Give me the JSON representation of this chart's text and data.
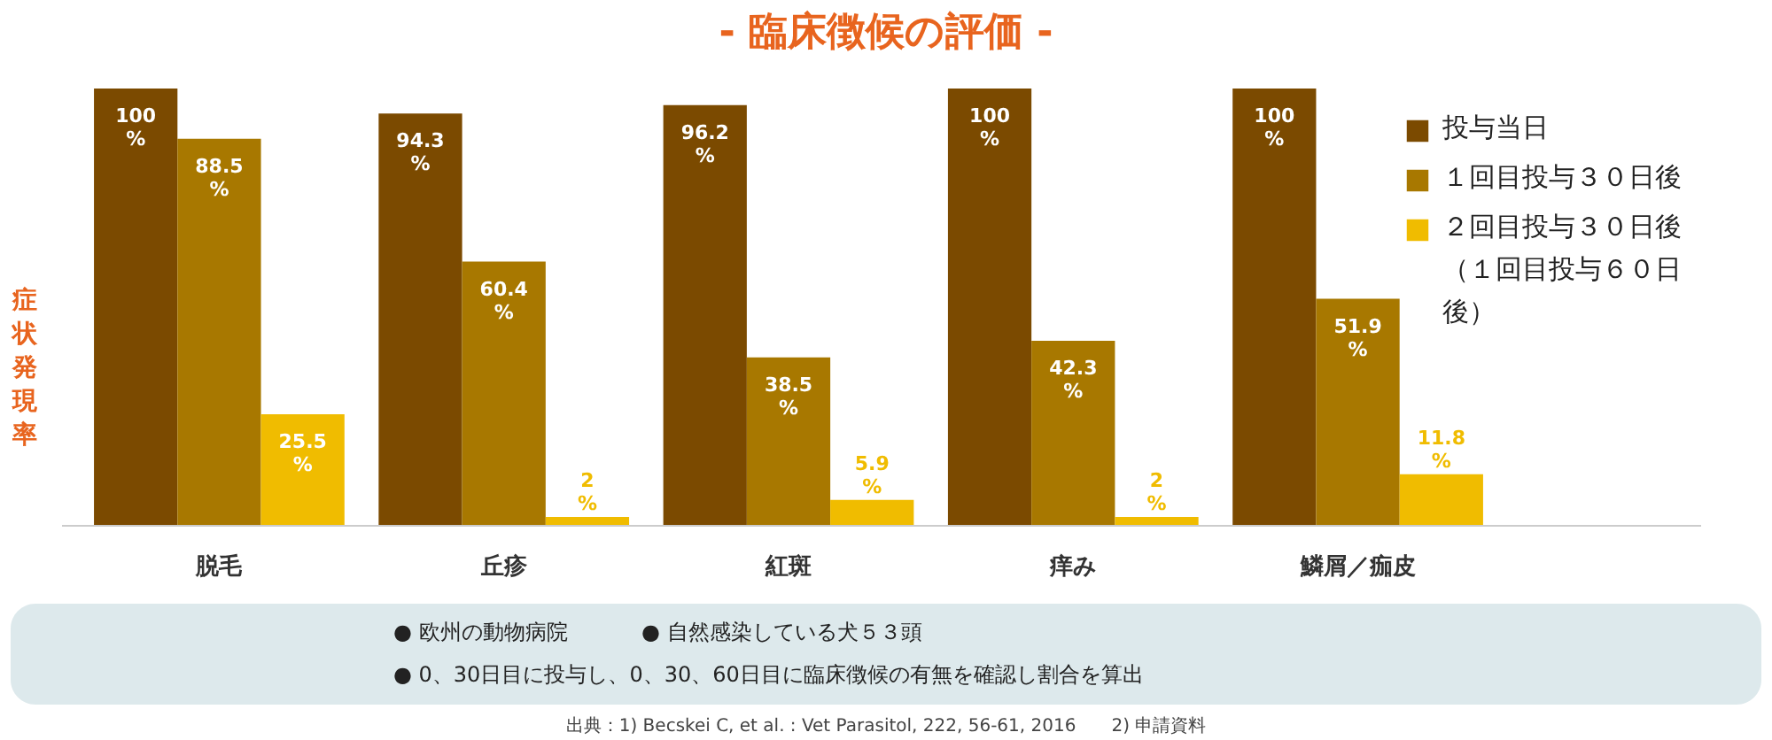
{
  "chart_data": {
    "type": "bar",
    "title": "- 臨床徴候の評価 -",
    "ylabel": "症状発現率",
    "categories": [
      "脱毛",
      "丘疹",
      "紅斑",
      "痒み",
      "鱗屑／痂皮"
    ],
    "series": [
      {
        "name": "投与当日",
        "color": "#7b4a00",
        "values": [
          100,
          94.3,
          96.2,
          100,
          100
        ],
        "value_labels": [
          "100%",
          "94.3%",
          "96.2%",
          "100%",
          "100%"
        ]
      },
      {
        "name": "１回目投与３０日後",
        "color": "#a87800",
        "values": [
          88.5,
          60.4,
          38.5,
          42.3,
          51.9
        ],
        "value_labels": [
          "88.5%",
          "60.4%",
          "38.5%",
          "42.3%",
          "51.9%"
        ]
      },
      {
        "name": "２回目投与３０日後（１回目投与６０日後）",
        "color": "#f0bc00",
        "values": [
          25.5,
          2,
          5.9,
          2,
          11.8
        ],
        "value_labels": [
          "25.5%",
          "2%",
          "5.9%",
          "2%",
          "11.8%"
        ]
      }
    ],
    "grid": false,
    "legend": "top right",
    "annotations": [
      "● 欧州の動物病院",
      "● 自然感染している犬５３頭",
      "● 0、30日目に投与し、0、30、60日目に臨床徴候の有無を確認し割合を算出",
      "出典：1) Becskei C, et al. : Vet Parasitol, 222, 56-61, 2016　　2) 申請資料"
    ]
  }
}
